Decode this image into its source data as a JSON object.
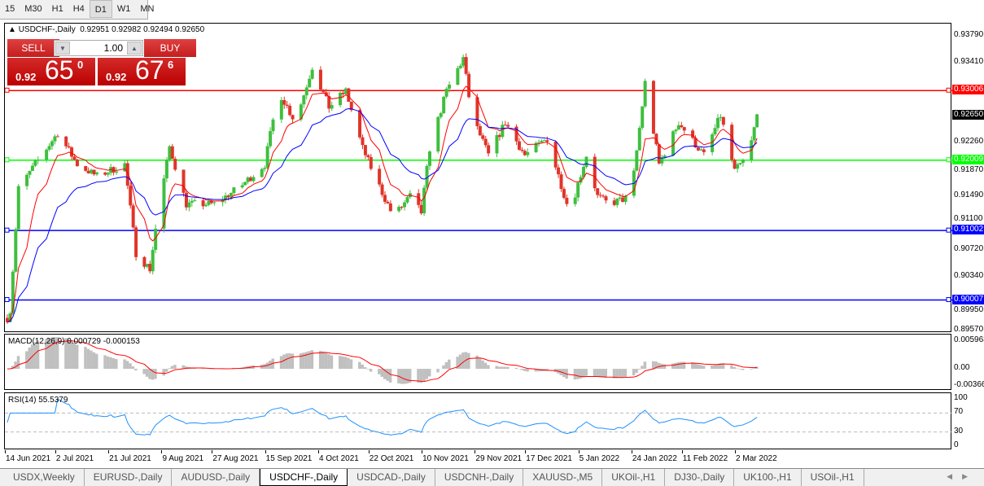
{
  "timeframes": [
    {
      "label": "15"
    },
    {
      "label": "M30"
    },
    {
      "label": "H1"
    },
    {
      "label": "H4"
    },
    {
      "label": "D1",
      "active": true
    },
    {
      "label": "W1"
    },
    {
      "label": "MN"
    }
  ],
  "chart": {
    "title": "USDCHF-,Daily",
    "ohlc": "0.92951 0.92982 0.92494 0.92650",
    "trade_panel": {
      "sell_label": "SELL",
      "buy_label": "BUY",
      "lot": "1.00",
      "sell_prefix": "0.92",
      "sell_big": "65",
      "sell_sup": "0",
      "buy_prefix": "0.92",
      "buy_big": "67",
      "buy_sup": "6"
    },
    "price_axis": [
      "0.93790",
      "0.93410",
      "0.92260",
      "0.91870",
      "0.91490",
      "0.91100",
      "0.90720",
      "0.90340",
      "0.89950",
      "0.89570"
    ],
    "price_range": [
      0.8957,
      0.9379
    ],
    "current_price": "0.92650",
    "hlines": [
      {
        "value": "0.93006",
        "color": "#ff0000"
      },
      {
        "value": "0.92009",
        "color": "#00ff00"
      },
      {
        "value": "0.91002",
        "color": "#0000ff"
      },
      {
        "value": "0.90007",
        "color": "#0000ff"
      }
    ],
    "colors": {
      "up": "#3fbf3f",
      "down": "#e0342a",
      "ma_fast": "#ff0000",
      "ma_slow": "#0000ff"
    },
    "price_path": [
      [
        "2021-06-14",
        0.8975
      ],
      [
        "2021-06-15",
        0.8985
      ],
      [
        "2021-06-18",
        0.916
      ],
      [
        "2021-06-24",
        0.9195
      ],
      [
        "2021-07-02",
        0.924
      ],
      [
        "2021-07-09",
        0.9195
      ],
      [
        "2021-07-16",
        0.9178
      ],
      [
        "2021-07-26",
        0.9195
      ],
      [
        "2021-07-30",
        0.9068
      ],
      [
        "2021-08-04",
        0.9045
      ],
      [
        "2021-08-06",
        0.9103
      ],
      [
        "2021-08-11",
        0.922
      ],
      [
        "2021-08-17",
        0.9138
      ],
      [
        "2021-08-27",
        0.9138
      ],
      [
        "2021-09-05",
        0.9162
      ],
      [
        "2021-09-14",
        0.9195
      ],
      [
        "2021-09-19",
        0.93
      ],
      [
        "2021-09-25",
        0.9255
      ],
      [
        "2021-10-01",
        0.9335
      ],
      [
        "2021-10-07",
        0.9277
      ],
      [
        "2021-10-13",
        0.93
      ],
      [
        "2021-10-19",
        0.9218
      ],
      [
        "2021-10-24",
        0.9172
      ],
      [
        "2021-10-30",
        0.912
      ],
      [
        "2021-11-05",
        0.9149
      ],
      [
        "2021-11-09",
        0.9126
      ],
      [
        "2021-11-12",
        0.9218
      ],
      [
        "2021-11-18",
        0.93
      ],
      [
        "2021-11-24",
        0.9347
      ],
      [
        "2021-11-27",
        0.9265
      ],
      [
        "2021-12-03",
        0.9208
      ],
      [
        "2021-12-09",
        0.9255
      ],
      [
        "2021-12-16",
        0.9208
      ],
      [
        "2021-12-24",
        0.9232
      ],
      [
        "2022-01-01",
        0.9126
      ],
      [
        "2022-01-07",
        0.9208
      ],
      [
        "2022-01-11",
        0.9149
      ],
      [
        "2022-01-15",
        0.9138
      ],
      [
        "2022-01-23",
        0.9149
      ],
      [
        "2022-01-28",
        0.9312
      ],
      [
        "2022-02-02",
        0.9195
      ],
      [
        "2022-02-09",
        0.9255
      ],
      [
        "2022-02-18",
        0.9208
      ],
      [
        "2022-02-24",
        0.9265
      ],
      [
        "2022-03-01",
        0.9185
      ],
      [
        "2022-03-06",
        0.9208
      ],
      [
        "2022-03-09",
        0.9265
      ]
    ]
  },
  "macd": {
    "label": "MACD(12,26,9) 0.000729 -0.000153",
    "axis": [
      "0.005963",
      "0.00",
      "-0.00366"
    ],
    "range": [
      -0.00366,
      0.005963
    ],
    "hist_color": "#c0c0c0",
    "signal_color": "#ff0000"
  },
  "rsi": {
    "label": "RSI(14) 55.5379",
    "axis": [
      "100",
      "70",
      "30",
      "0"
    ],
    "levels": [
      70,
      30
    ],
    "line_color": "#1e90ff"
  },
  "date_axis": [
    {
      "label": "14 Jun 2021",
      "date": "2021-06-14"
    },
    {
      "label": "2 Jul 2021",
      "date": "2021-07-02"
    },
    {
      "label": "21 Jul 2021",
      "date": "2021-07-21"
    },
    {
      "label": "9 Aug 2021",
      "date": "2021-08-09"
    },
    {
      "label": "27 Aug 2021",
      "date": "2021-08-27"
    },
    {
      "label": "15 Sep 2021",
      "date": "2021-09-15"
    },
    {
      "label": "4 Oct 2021",
      "date": "2021-10-04"
    },
    {
      "label": "22 Oct 2021",
      "date": "2021-10-22"
    },
    {
      "label": "10 Nov 2021",
      "date": "2021-11-10"
    },
    {
      "label": "29 Nov 2021",
      "date": "2021-11-29"
    },
    {
      "label": "17 Dec 2021",
      "date": "2021-12-17"
    },
    {
      "label": "5 Jan 2022",
      "date": "2022-01-05"
    },
    {
      "label": "24 Jan 2022",
      "date": "2022-01-24"
    },
    {
      "label": "11 Feb 2022",
      "date": "2022-02-11"
    },
    {
      "label": "2 Mar 2022",
      "date": "2022-03-02"
    }
  ],
  "tabs": [
    {
      "label": "USDX,Weekly"
    },
    {
      "label": "EURUSD-,Daily"
    },
    {
      "label": "AUDUSD-,Daily"
    },
    {
      "label": "USDCHF-,Daily",
      "active": true
    },
    {
      "label": "USDCAD-,Daily"
    },
    {
      "label": "USDCNH-,Daily"
    },
    {
      "label": "XAUUSD-,M5"
    },
    {
      "label": "UKOil-,H1"
    },
    {
      "label": "DJ30-,Daily"
    },
    {
      "label": "UK100-,H1"
    },
    {
      "label": "USOil-,H1"
    }
  ]
}
